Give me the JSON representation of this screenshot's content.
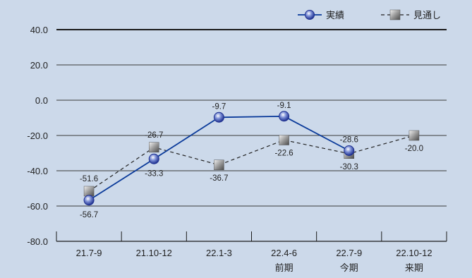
{
  "chart_data": {
    "type": "line",
    "categories": [
      "21.7-9",
      "21.10-12",
      "22.1-3",
      "22.4-6",
      "22.7-9",
      "22.10-12"
    ],
    "category_sublabels": [
      "",
      "",
      "",
      "前期",
      "今期",
      "来期"
    ],
    "y_ticks": [
      "40.0",
      "20.0",
      "0.0",
      "-20.0",
      "-40.0",
      "-60.0",
      "-80.0"
    ],
    "ylim": [
      -80,
      40
    ],
    "grid": true,
    "legend_position": "top-right",
    "background_color": "#ccd9ea",
    "series": [
      {
        "name": "実績",
        "style": "solid-line-circle-marker",
        "color": "#0a3a9a",
        "values": [
          -56.7,
          -33.3,
          -9.7,
          -9.1,
          -28.6,
          null
        ],
        "labels": [
          "-56.7",
          "-33.3",
          "-9.7",
          "-9.1",
          "-28.6",
          ""
        ]
      },
      {
        "name": "見通し",
        "style": "dashed-line-square-marker",
        "color": "#222222",
        "values": [
          -51.6,
          -26.7,
          -36.7,
          -22.6,
          -30.3,
          -20.0
        ],
        "labels": [
          "-51.6",
          "-26.7",
          "-36.7",
          "-22.6",
          "-30.3",
          "-20.0"
        ]
      }
    ]
  }
}
